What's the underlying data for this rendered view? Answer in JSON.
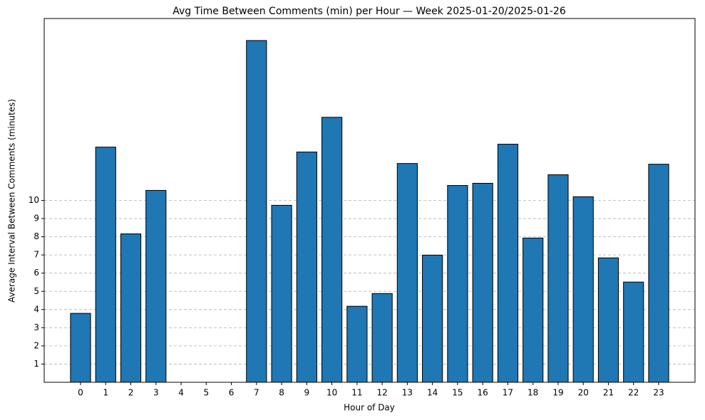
{
  "chart_data": {
    "type": "bar",
    "title": "Avg Time Between Comments (min) per Hour — Week 2025-01-20/2025-01-26",
    "x_label": "Hour of Day",
    "y_label": "Average Interval Between Comments (minutes)",
    "categories": [
      "0",
      "1",
      "2",
      "3",
      "4",
      "5",
      "6",
      "7",
      "8",
      "9",
      "10",
      "11",
      "12",
      "13",
      "14",
      "15",
      "16",
      "17",
      "18",
      "19",
      "20",
      "21",
      "22",
      "23"
    ],
    "values": [
      3.79,
      12.93,
      8.16,
      10.55,
      0,
      0,
      0,
      18.79,
      9.73,
      12.66,
      14.57,
      4.18,
      4.88,
      12.03,
      6.99,
      10.82,
      10.94,
      13.09,
      7.93,
      11.41,
      10.2,
      6.84,
      5.51,
      11.99
    ],
    "color": "#1f77b4",
    "ylim": [
      0,
      20
    ],
    "yticks": [
      1,
      2,
      3,
      4,
      5,
      6,
      7,
      8,
      9,
      10
    ],
    "grid": true
  }
}
